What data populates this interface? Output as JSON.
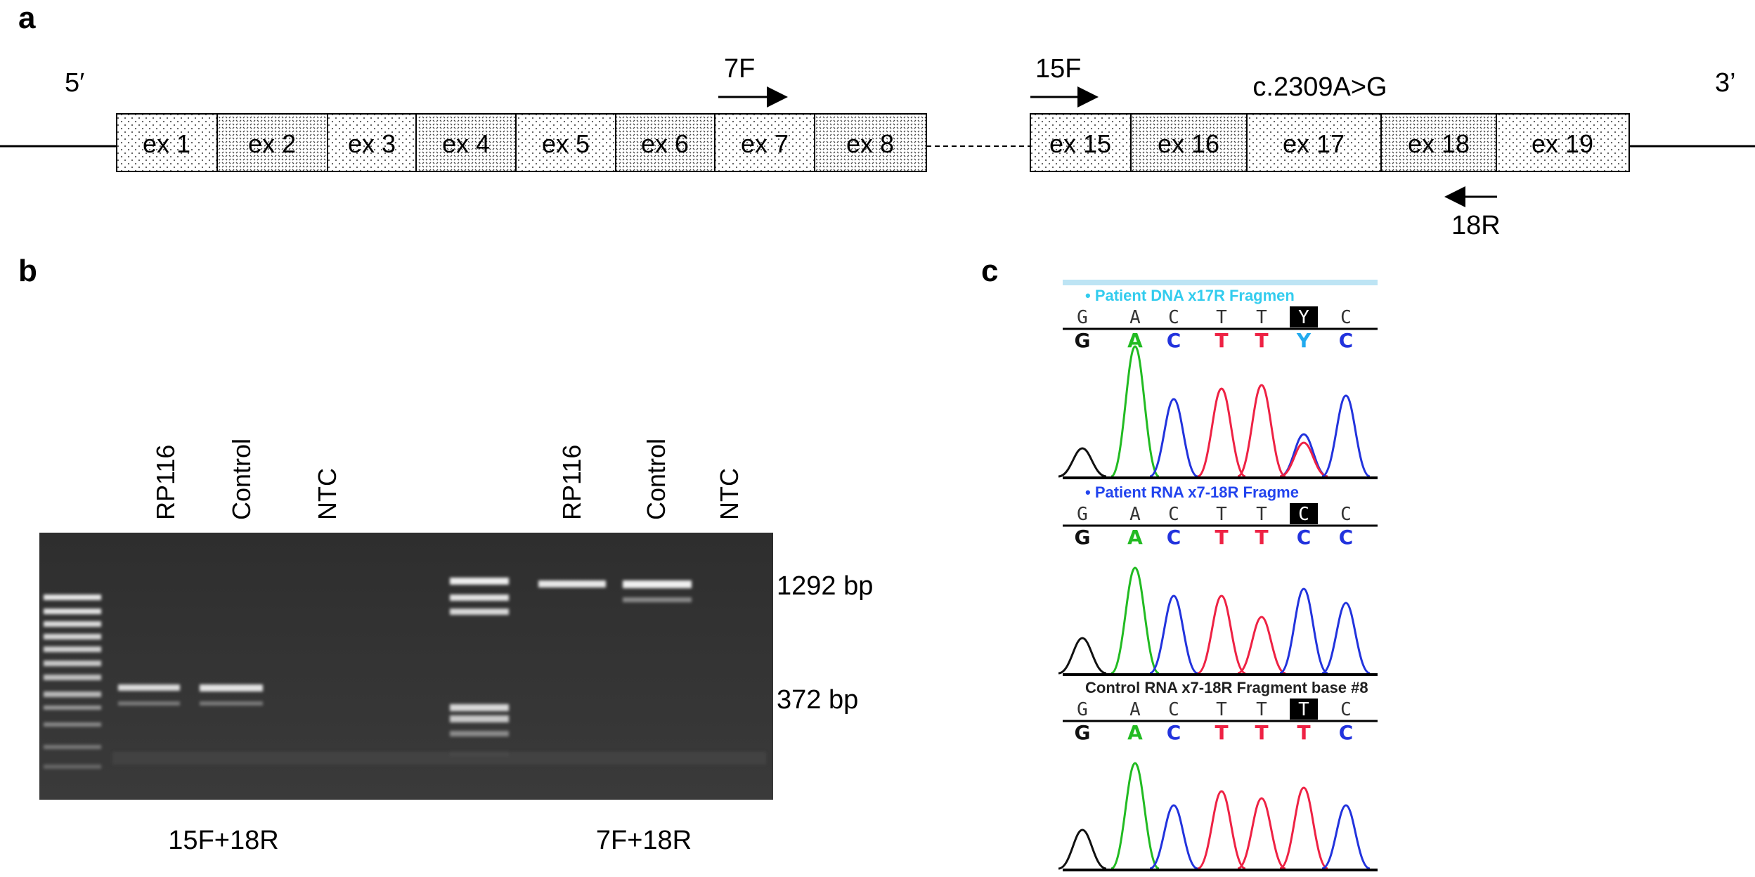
{
  "panels": {
    "a": {
      "label": "a",
      "five_prime": "5′",
      "three_prime": "3’",
      "left_exons": [
        "ex 1",
        "ex 2",
        "ex 3",
        "ex 4",
        "ex 5",
        "ex 6",
        "ex 7",
        "ex 8"
      ],
      "right_exons": [
        "ex 15",
        "ex 16",
        "ex 17",
        "ex 18",
        "ex 19"
      ],
      "primer_forward_1": "7F",
      "primer_forward_2": "15F",
      "primer_reverse": "18R",
      "mutation": "c.2309A>G"
    },
    "b": {
      "label": "b",
      "group1_lanes": [
        "RP116",
        "Control",
        "NTC"
      ],
      "group2_lanes": [
        "RP116",
        "Control",
        "NTC"
      ],
      "band_label_high": "1292 bp",
      "band_label_low": "372 bp",
      "group1_caption": "15F+18R",
      "group2_caption": "7F+18R"
    },
    "c": {
      "label": "c",
      "traces": [
        {
          "title": "• Patient DNA x17R Fragmen",
          "title_color": "#33ccee",
          "bases": [
            "G",
            "A",
            "C",
            "T",
            "T",
            "Y",
            "C"
          ],
          "calls": [
            "G",
            "A",
            "C",
            "T",
            "T",
            "Y",
            "C"
          ],
          "highlight_index": 5
        },
        {
          "title": "• Patient RNA x7-18R Fragme",
          "title_color": "#2244ee",
          "bases": [
            "G",
            "A",
            "C",
            "T",
            "T",
            "C",
            "C"
          ],
          "calls": [
            "G",
            "A",
            "C",
            "T",
            "T",
            "C",
            "C"
          ],
          "highlight_index": 5
        },
        {
          "title": "Control RNA x7-18R Fragment base #8",
          "title_color": "#222222",
          "bases": [
            "G",
            "A",
            "C",
            "T",
            "T",
            "T",
            "C"
          ],
          "calls": [
            "G",
            "A",
            "C",
            "T",
            "T",
            "T",
            "C"
          ],
          "highlight_index": 5
        }
      ],
      "base_colors": {
        "G": "#111111",
        "A": "#22bb22",
        "C": "#2233dd",
        "T": "#ee2244",
        "Y": "#22aaee"
      }
    }
  }
}
